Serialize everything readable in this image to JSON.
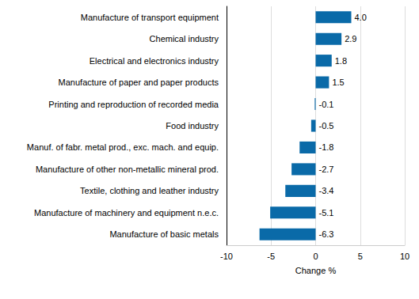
{
  "chart_data": {
    "type": "bar",
    "orientation": "horizontal",
    "categories": [
      "Manufacture of transport equipment",
      "Chemical industry",
      "Electrical and electronics industry",
      "Manufacture of paper and paper products",
      "Printing and reproduction of recorded media",
      "Food industry",
      "Manuf. of fabr. metal prod., exc. mach. and equip.",
      "Manufacture of other non-metallic mineral prod.",
      "Textile, clothing and leather industry",
      "Manufacture of machinery and equipment n.e.c.",
      "Manufacture of basic metals"
    ],
    "values": [
      4.0,
      2.9,
      1.8,
      1.5,
      -0.1,
      -0.5,
      -1.8,
      -2.7,
      -3.4,
      -5.1,
      -6.3
    ],
    "value_labels": [
      "4.0",
      "2.9",
      "1.8",
      "1.5",
      "-0.1",
      "-0.5",
      "-1.8",
      "-2.7",
      "-3.4",
      "-5.1",
      "-6.3"
    ],
    "color": "#0a6aa8",
    "xlabel": "Change %",
    "xlim": [
      -10,
      10
    ],
    "xticks": [
      -10,
      -5,
      0,
      5,
      10
    ],
    "grid": true,
    "data_labels": true
  }
}
